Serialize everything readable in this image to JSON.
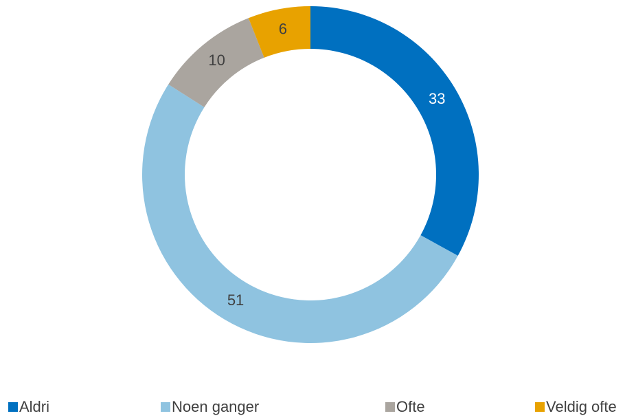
{
  "chart_data": {
    "type": "donut",
    "categories": [
      "Aldri",
      "Noen ganger",
      "Ofte",
      "Veldig ofte"
    ],
    "values": [
      33,
      51,
      10,
      6
    ],
    "colors": [
      "#0070c0",
      "#8fc3e0",
      "#aaa59f",
      "#e8a200"
    ],
    "legend": "bottom"
  }
}
